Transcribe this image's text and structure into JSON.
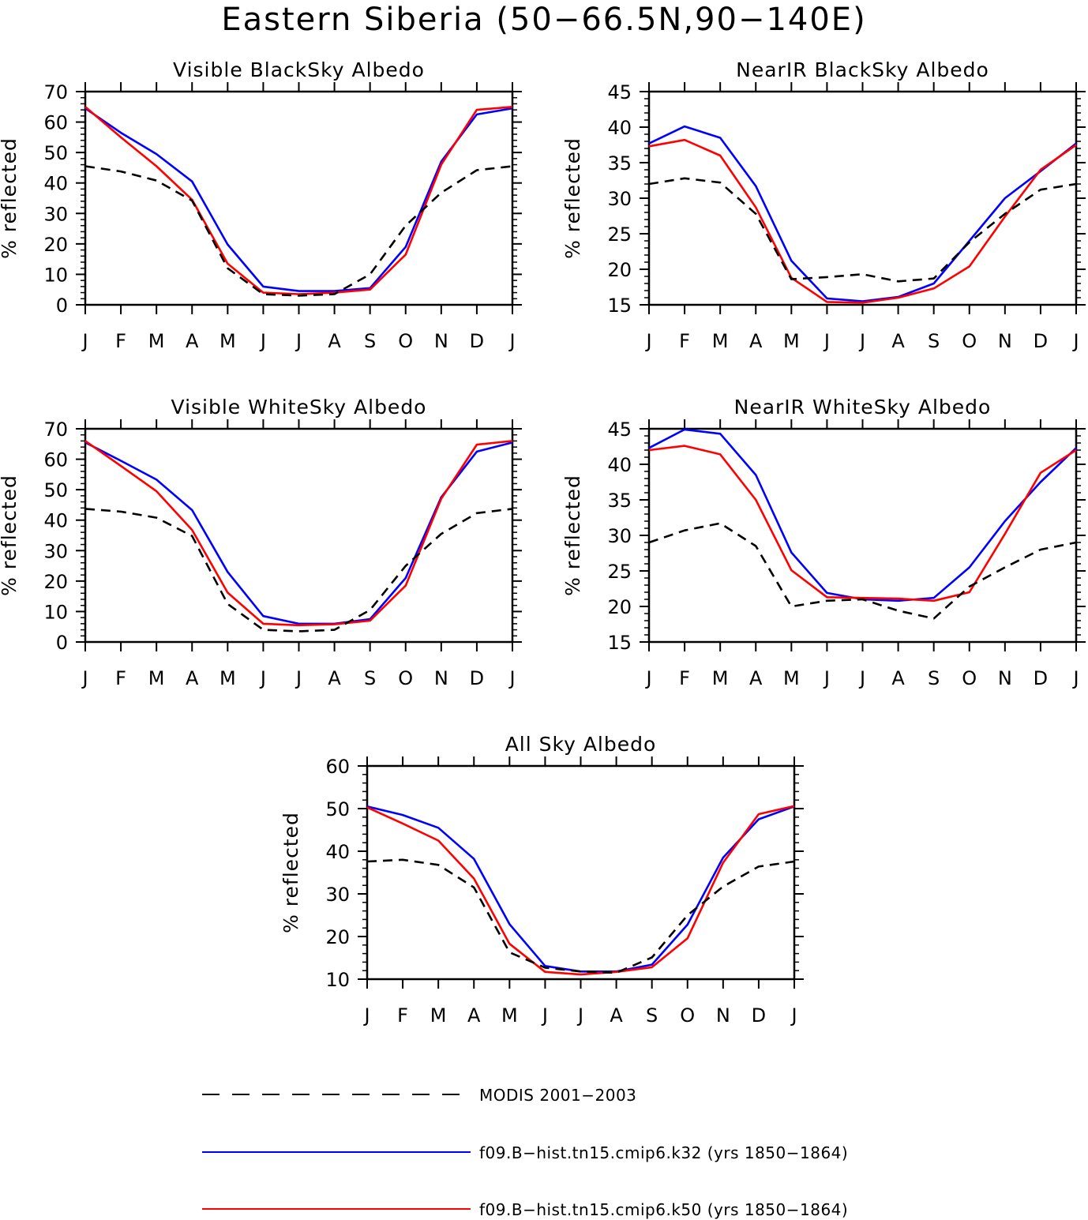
{
  "title": "Eastern Siberia (50−66.5N,90−140E)",
  "colors": {
    "modis": "#000000",
    "k32": "#0000ff",
    "k50": "#ff0000"
  },
  "legend": [
    {
      "series": "modis",
      "label": "MODIS 2001−2003",
      "style": "dashed"
    },
    {
      "series": "k32",
      "label": "f09.B−hist.tn15.cmip6.k32 (yrs 1850−1864)",
      "style": "solid"
    },
    {
      "series": "k50",
      "label": "f09.B−hist.tn15.cmip6.k50 (yrs 1850−1864)",
      "style": "solid"
    }
  ],
  "chart_data": [
    {
      "type": "line",
      "title": "Visible BlackSky Albedo",
      "ylabel": "% reflected",
      "categories": [
        "J",
        "F",
        "M",
        "A",
        "M",
        "J",
        "J",
        "A",
        "S",
        "O",
        "N",
        "D",
        "J"
      ],
      "ylim": [
        0,
        70
      ],
      "yticks": [
        0,
        10,
        20,
        30,
        40,
        50,
        60,
        70
      ],
      "series": [
        {
          "key": "modis",
          "values": [
            45.5,
            43.8,
            40.8,
            34.2,
            12.0,
            3.5,
            3.0,
            3.5,
            10.0,
            26.0,
            36.8,
            44.2,
            45.5
          ]
        },
        {
          "key": "k32",
          "values": [
            64.5,
            56.5,
            49.5,
            40.5,
            19.8,
            6.0,
            4.5,
            4.5,
            5.5,
            19.0,
            47.0,
            62.5,
            64.5
          ]
        },
        {
          "key": "k50",
          "values": [
            65.0,
            55.0,
            45.5,
            34.5,
            13.5,
            4.0,
            3.5,
            4.0,
            5.0,
            16.5,
            46.0,
            64.0,
            65.0
          ]
        }
      ]
    },
    {
      "type": "line",
      "title": "NearIR BlackSky Albedo",
      "ylabel": "% reflected",
      "categories": [
        "J",
        "F",
        "M",
        "A",
        "M",
        "J",
        "J",
        "A",
        "S",
        "O",
        "N",
        "D",
        "J"
      ],
      "ylim": [
        15,
        45
      ],
      "yticks": [
        15,
        20,
        25,
        30,
        35,
        40,
        45
      ],
      "series": [
        {
          "key": "modis",
          "values": [
            32.0,
            32.8,
            32.2,
            27.8,
            18.6,
            18.9,
            19.3,
            18.3,
            18.7,
            23.8,
            27.8,
            31.2,
            32.0
          ]
        },
        {
          "key": "k32",
          "values": [
            37.7,
            40.1,
            38.5,
            31.7,
            21.2,
            15.9,
            15.5,
            16.1,
            18.0,
            24.0,
            30.0,
            33.8,
            37.7
          ]
        },
        {
          "key": "k50",
          "values": [
            37.3,
            38.2,
            36.0,
            28.7,
            18.8,
            15.4,
            15.3,
            16.0,
            17.3,
            20.4,
            27.4,
            34.0,
            37.5
          ]
        }
      ]
    },
    {
      "type": "line",
      "title": "Visible WhiteSky Albedo",
      "ylabel": "% reflected",
      "categories": [
        "J",
        "F",
        "M",
        "A",
        "M",
        "J",
        "J",
        "A",
        "S",
        "O",
        "N",
        "D",
        "J"
      ],
      "ylim": [
        0,
        70
      ],
      "yticks": [
        0,
        10,
        20,
        30,
        40,
        50,
        60,
        70
      ],
      "series": [
        {
          "key": "modis",
          "values": [
            43.7,
            42.8,
            40.8,
            34.8,
            12.5,
            4.0,
            3.5,
            4.0,
            10.5,
            25.0,
            35.5,
            42.3,
            43.7
          ]
        },
        {
          "key": "k32",
          "values": [
            65.5,
            59.5,
            53.3,
            43.3,
            23.0,
            8.5,
            6.0,
            6.0,
            7.5,
            21.0,
            47.5,
            62.5,
            65.5
          ]
        },
        {
          "key": "k50",
          "values": [
            66.0,
            57.8,
            49.5,
            36.8,
            16.2,
            6.0,
            5.5,
            5.8,
            7.0,
            18.5,
            47.0,
            64.8,
            66.0
          ]
        }
      ]
    },
    {
      "type": "line",
      "title": "NearIR WhiteSky Albedo",
      "ylabel": "% reflected",
      "categories": [
        "J",
        "F",
        "M",
        "A",
        "M",
        "J",
        "J",
        "A",
        "S",
        "O",
        "N",
        "D",
        "J"
      ],
      "ylim": [
        15,
        45
      ],
      "yticks": [
        15,
        20,
        25,
        30,
        35,
        40,
        45
      ],
      "series": [
        {
          "key": "modis",
          "values": [
            29.0,
            30.7,
            31.7,
            28.5,
            20.0,
            20.8,
            21.0,
            19.4,
            18.3,
            22.8,
            25.5,
            28.0,
            29.0
          ]
        },
        {
          "key": "k32",
          "values": [
            42.3,
            44.9,
            44.3,
            38.5,
            27.6,
            21.9,
            21.0,
            20.8,
            21.2,
            25.5,
            32.0,
            37.5,
            42.3
          ]
        },
        {
          "key": "k50",
          "values": [
            42.0,
            42.6,
            41.4,
            35.0,
            25.1,
            21.3,
            21.2,
            21.1,
            20.8,
            22.0,
            30.2,
            38.8,
            42.0
          ]
        }
      ]
    },
    {
      "type": "line",
      "title": "All Sky Albedo",
      "ylabel": "% reflected",
      "categories": [
        "J",
        "F",
        "M",
        "A",
        "M",
        "J",
        "J",
        "A",
        "S",
        "O",
        "N",
        "D",
        "J"
      ],
      "ylim": [
        10,
        60
      ],
      "yticks": [
        10,
        20,
        30,
        40,
        50,
        60
      ],
      "series": [
        {
          "key": "modis",
          "values": [
            37.6,
            38.0,
            36.8,
            31.5,
            16.3,
            12.7,
            11.8,
            11.5,
            15.1,
            25.0,
            31.7,
            36.4,
            37.6
          ]
        },
        {
          "key": "k32",
          "values": [
            50.5,
            48.5,
            45.5,
            38.2,
            22.9,
            13.1,
            11.8,
            11.8,
            13.4,
            22.8,
            38.5,
            47.5,
            50.5
          ]
        },
        {
          "key": "k50",
          "values": [
            50.3,
            46.5,
            42.5,
            33.6,
            18.3,
            11.7,
            11.1,
            11.7,
            12.8,
            19.6,
            37.3,
            48.7,
            50.6
          ]
        }
      ]
    }
  ]
}
